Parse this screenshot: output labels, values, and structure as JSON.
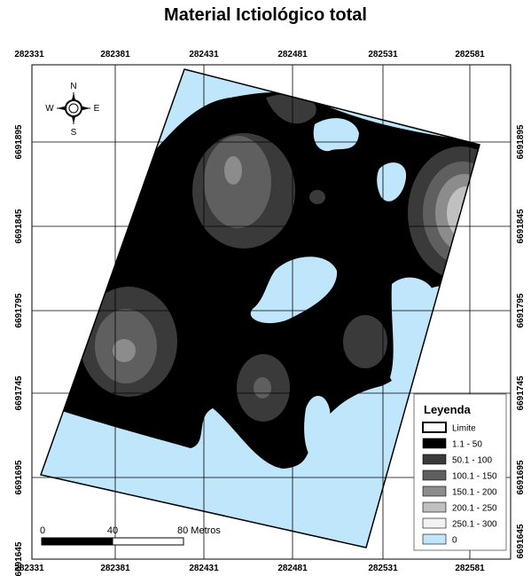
{
  "title": "Material Ictiológico total",
  "grid": {
    "x_labels": [
      "282331",
      "282381",
      "282431",
      "282481",
      "282531",
      "282581"
    ],
    "y_labels": [
      "6691895",
      "6691845",
      "6691795",
      "6691745",
      "6691695",
      "6691645"
    ]
  },
  "compass": {
    "n": "N",
    "s": "S",
    "e": "E",
    "w": "W"
  },
  "legend": {
    "title": "Leyenda",
    "items": [
      {
        "label": "Limite",
        "color": "#ffffff",
        "kind": "outline"
      },
      {
        "label": "1.1 - 50",
        "color": "#000000"
      },
      {
        "label": "50.1 - 100",
        "color": "#3a3a3a"
      },
      {
        "label": "100.1 - 150",
        "color": "#5f5f5f"
      },
      {
        "label": "150.1 - 200",
        "color": "#8c8c8c"
      },
      {
        "label": "200.1 - 250",
        "color": "#c0c0c0"
      },
      {
        "label": "250.1 - 300",
        "color": "#f2f2f2"
      },
      {
        "label": "0",
        "color": "#bfe6fb"
      }
    ]
  },
  "scale_bar": {
    "labels": [
      "0",
      "40",
      "80 Metros"
    ]
  },
  "colors": {
    "water": "#bfe6fb",
    "class1": "#000000",
    "class2": "#3a3a3a",
    "class3": "#5f5f5f",
    "class4": "#8c8c8c",
    "class5": "#c0c0c0",
    "class6": "#f2f2f2"
  }
}
